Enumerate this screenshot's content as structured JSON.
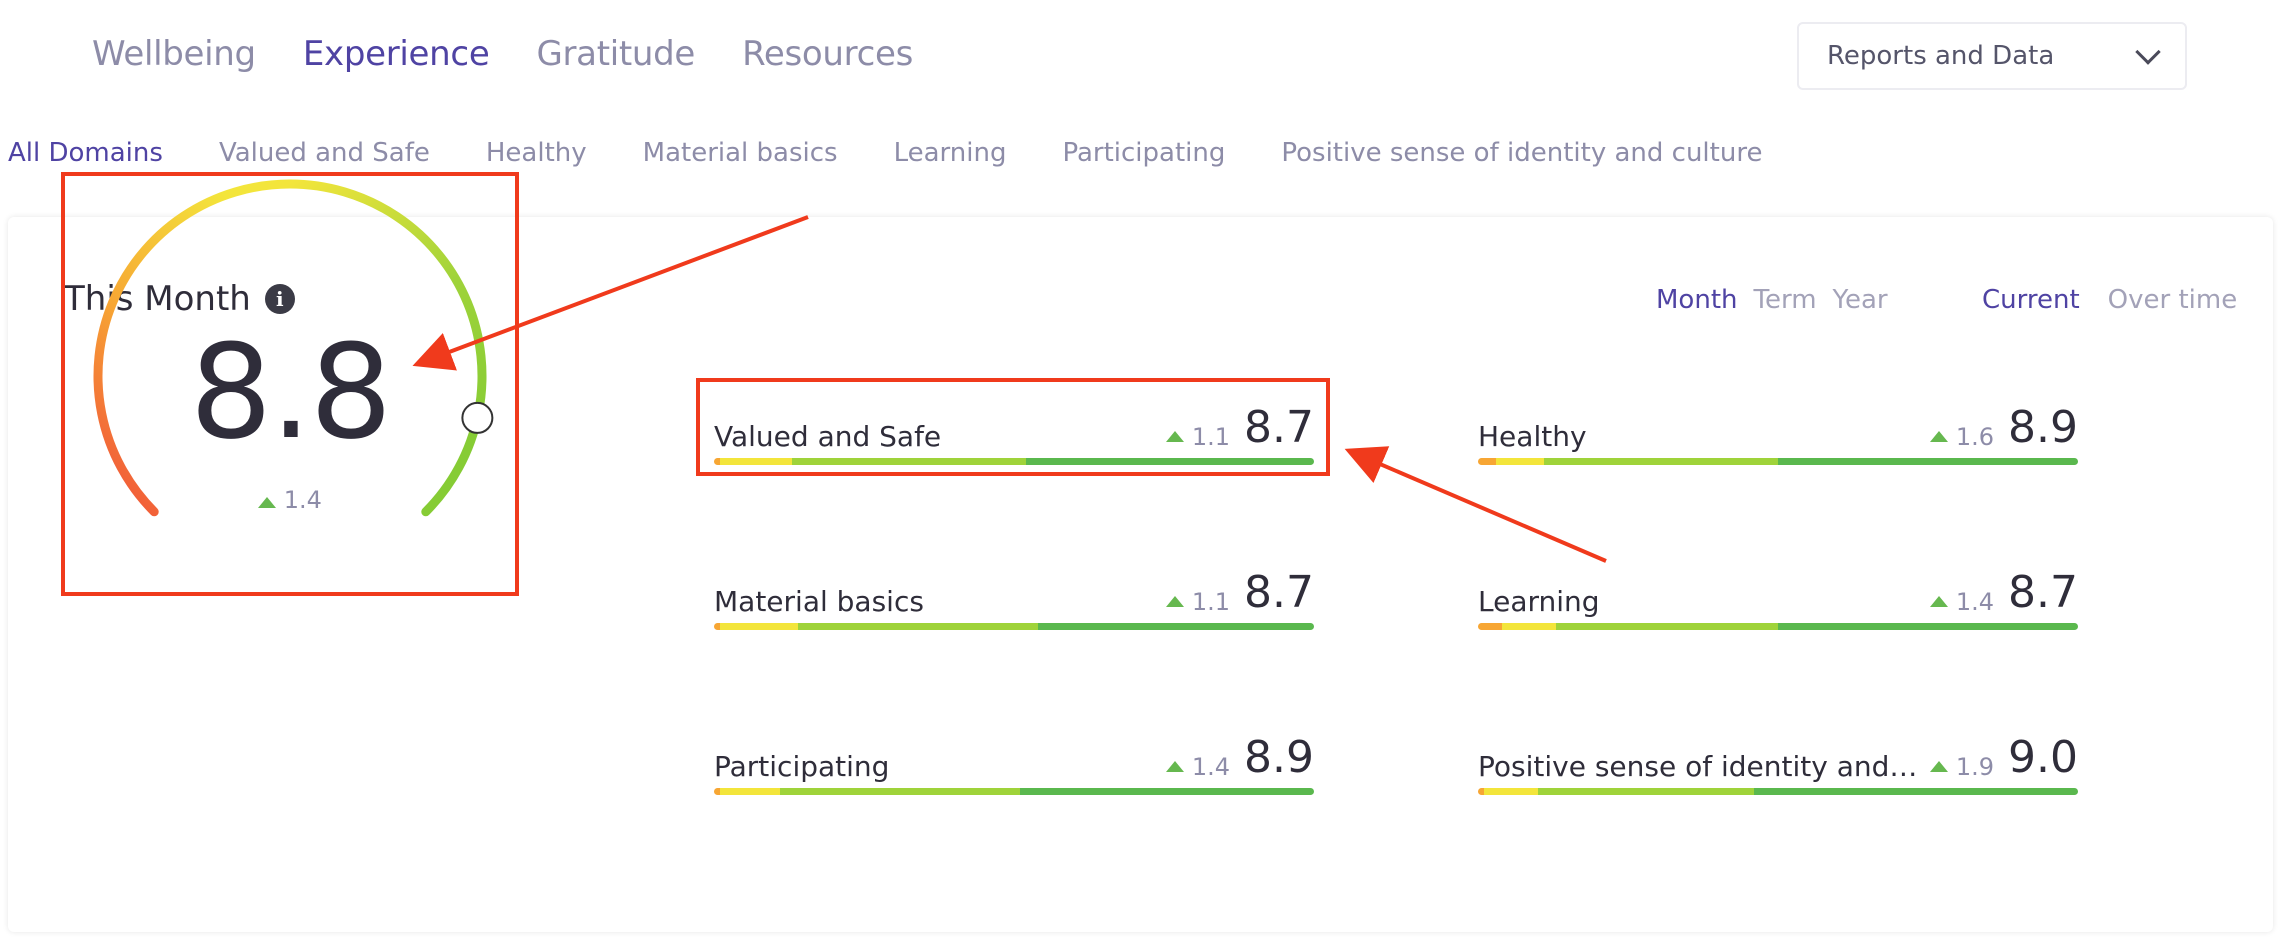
{
  "top_nav": [
    "Wellbeing",
    "Experience",
    "Gratitude",
    "Resources"
  ],
  "top_nav_active": "Experience",
  "reports_select": {
    "label": "Reports and Data"
  },
  "domain_nav": [
    "All Domains",
    "Valued and Safe",
    "Healthy",
    "Material basics",
    "Learning",
    "Participating",
    "Positive sense of identity and culture"
  ],
  "domain_nav_active": "All Domains",
  "card": {
    "title": "This Month",
    "period_options": [
      "Month",
      "Term",
      "Year"
    ],
    "period_active": "Month",
    "view_options": [
      "Current",
      "Over time"
    ],
    "view_active": "Current"
  },
  "gauge": {
    "value": "8.8",
    "delta": "1.4",
    "level": 0.88
  },
  "domains": [
    {
      "name": "Valued and Safe",
      "delta": "1.1",
      "score": "8.7",
      "bands": [
        0.01,
        0.12,
        0.39,
        0.48
      ]
    },
    {
      "name": "Healthy",
      "delta": "1.6",
      "score": "8.9",
      "bands": [
        0.03,
        0.08,
        0.39,
        0.5
      ]
    },
    {
      "name": "Material basics",
      "delta": "1.1",
      "score": "8.7",
      "bands": [
        0.01,
        0.13,
        0.4,
        0.46
      ]
    },
    {
      "name": "Learning",
      "delta": "1.4",
      "score": "8.7",
      "bands": [
        0.04,
        0.09,
        0.37,
        0.5
      ]
    },
    {
      "name": "Participating",
      "delta": "1.4",
      "score": "8.9",
      "bands": [
        0.01,
        0.1,
        0.4,
        0.49
      ]
    },
    {
      "name": "Positive sense of identity and cu...",
      "delta": "1.9",
      "score": "9.0",
      "bands": [
        0.01,
        0.09,
        0.36,
        0.54
      ]
    }
  ],
  "colors": {
    "accent": "#4f43a3",
    "muted": "#8d8ca8",
    "highlight": "#f03a1c",
    "band_red": "#f04b3a",
    "band_orange": "#f7a634",
    "band_yellow": "#f3e53b",
    "band_lightgreen": "#9fd33a",
    "band_green": "#5ab84e"
  }
}
